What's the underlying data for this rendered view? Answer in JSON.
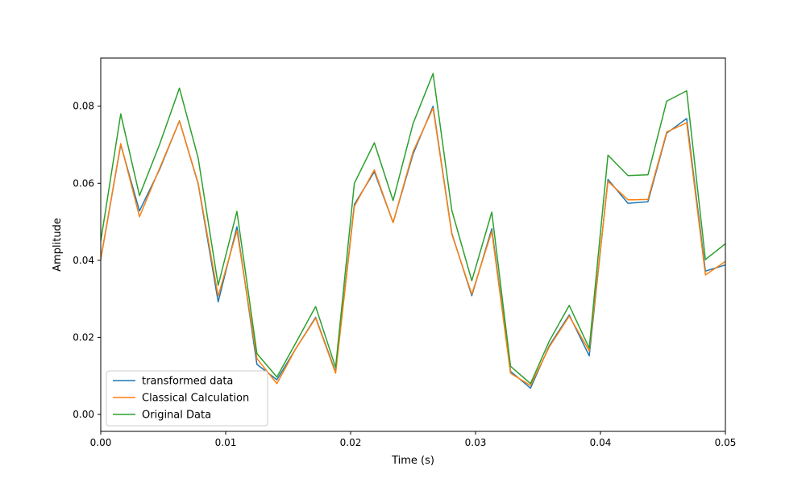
{
  "chart_data": {
    "type": "line",
    "title": "",
    "xlabel": "Time (s)",
    "ylabel": "Amplitude",
    "xlim": [
      0.0,
      0.05
    ],
    "ylim": [
      -0.0044,
      0.0925
    ],
    "xticks": [
      0.0,
      0.01,
      0.02,
      0.03,
      0.04,
      0.05
    ],
    "xtick_labels": [
      "0.00",
      "0.01",
      "0.02",
      "0.03",
      "0.04",
      "0.05"
    ],
    "yticks": [
      0.0,
      0.02,
      0.04,
      0.06,
      0.08
    ],
    "ytick_labels": [
      "0.00",
      "0.02",
      "0.04",
      "0.06",
      "0.08"
    ],
    "grid": false,
    "legend_position": "lower-left",
    "x": [
      0.0,
      0.0016,
      0.0031,
      0.0047,
      0.0063,
      0.0078,
      0.0094,
      0.0109,
      0.0125,
      0.0141,
      0.0156,
      0.0172,
      0.0188,
      0.0203,
      0.0219,
      0.0234,
      0.025,
      0.0266,
      0.0281,
      0.0297,
      0.0313,
      0.0328,
      0.0344,
      0.0359,
      0.0375,
      0.0391,
      0.0406,
      0.0422,
      0.0438,
      0.0453,
      0.0469,
      0.0484,
      0.05
    ],
    "series": [
      {
        "name": "transformed data",
        "color": "#1f77b4",
        "values": [
          0.0403,
          0.07,
          0.0528,
          0.0635,
          0.0762,
          0.0598,
          0.0292,
          0.0487,
          0.013,
          0.009,
          0.017,
          0.0252,
          0.011,
          0.0545,
          0.063,
          0.0498,
          0.0676,
          0.08,
          0.047,
          0.0308,
          0.0482,
          0.0112,
          0.0068,
          0.0178,
          0.0258,
          0.0152,
          0.061,
          0.0548,
          0.0552,
          0.073,
          0.0768,
          0.0372,
          0.0388
        ]
      },
      {
        "name": "Classical Calculation",
        "color": "#ff7f0e",
        "values": [
          0.0403,
          0.0703,
          0.0513,
          0.0638,
          0.0762,
          0.06,
          0.0307,
          0.0477,
          0.0145,
          0.008,
          0.017,
          0.025,
          0.0107,
          0.054,
          0.0635,
          0.0498,
          0.0682,
          0.0795,
          0.0468,
          0.0312,
          0.0475,
          0.0107,
          0.0075,
          0.0175,
          0.0255,
          0.0165,
          0.0605,
          0.0557,
          0.0558,
          0.0733,
          0.0757,
          0.0362,
          0.0397
        ]
      },
      {
        "name": "Original Data",
        "color": "#2ca02c",
        "values": [
          0.045,
          0.078,
          0.0568,
          0.07,
          0.0847,
          0.0665,
          0.0335,
          0.0527,
          0.0158,
          0.0097,
          0.0185,
          0.028,
          0.0122,
          0.06,
          0.0705,
          0.0555,
          0.0755,
          0.0885,
          0.053,
          0.0347,
          0.0525,
          0.0125,
          0.008,
          0.019,
          0.0283,
          0.0172,
          0.0673,
          0.062,
          0.0622,
          0.0813,
          0.084,
          0.0402,
          0.0443
        ]
      }
    ]
  }
}
